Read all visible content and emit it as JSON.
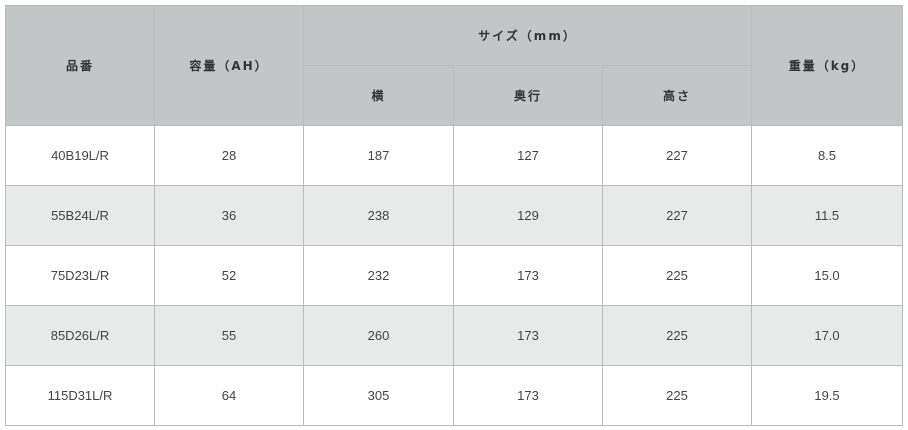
{
  "table": {
    "headers": {
      "part_number": "品番",
      "capacity": "容量（AH）",
      "size_group": "サイズ（mm）",
      "width": "横",
      "depth": "奥行",
      "height": "高さ",
      "weight": "重量（kg）"
    },
    "rows": [
      [
        "40B19L/R",
        "28",
        "187",
        "127",
        "227",
        "8.5"
      ],
      [
        "55B24L/R",
        "36",
        "238",
        "129",
        "227",
        "11.5"
      ],
      [
        "75D23L/R",
        "52",
        "232",
        "173",
        "225",
        "15.0"
      ],
      [
        "85D26L/R",
        "55",
        "260",
        "173",
        "225",
        "17.0"
      ],
      [
        "115D31L/R",
        "64",
        "305",
        "173",
        "225",
        "19.5"
      ]
    ]
  },
  "colors": {
    "header_bg": "#c3c6c7",
    "alt_row_bg": "#e8eaea",
    "border": "#b9bcbd"
  }
}
